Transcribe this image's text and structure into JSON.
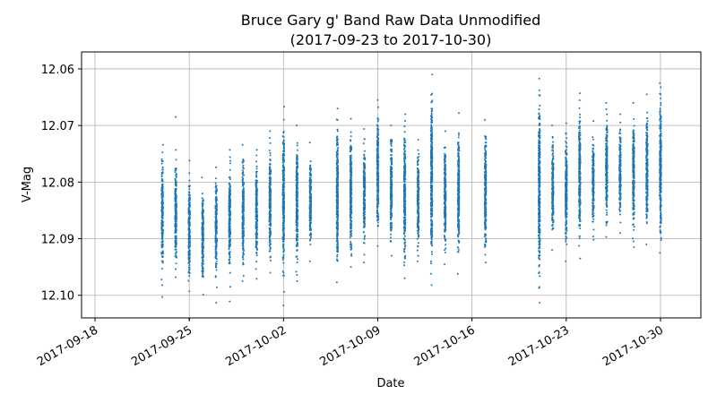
{
  "chart_data": {
    "type": "scatter",
    "title_line1": "Bruce Gary g' Band Raw Data Unmodified",
    "title_line2": "(2017-09-23 to 2017-10-30)",
    "xlabel": "Date",
    "ylabel": "V-Mag",
    "y_inverted": true,
    "ylim": [
      12.104,
      12.057
    ],
    "xlim": [
      "2017-09-17",
      "2017-11-02"
    ],
    "x_ticks": [
      "2017-09-18",
      "2017-09-25",
      "2017-10-02",
      "2017-10-09",
      "2017-10-16",
      "2017-10-23",
      "2017-10-30"
    ],
    "y_ticks": [
      12.06,
      12.07,
      12.08,
      12.09,
      12.1
    ],
    "y_tick_labels": [
      "12.06",
      "12.07",
      "12.08",
      "12.09",
      "12.10"
    ],
    "grid": true,
    "marker_color": "#1f77b4",
    "nights": [
      {
        "date": "2017-09-23",
        "min": 12.0734,
        "max": 12.0982,
        "outliers": [
          12.1003
        ]
      },
      {
        "date": "2017-09-24",
        "min": 12.0743,
        "max": 12.0968,
        "outliers": [
          12.0685
        ]
      },
      {
        "date": "2017-09-25",
        "min": 12.0762,
        "max": 12.0993,
        "outliers": [
          12.1042
        ]
      },
      {
        "date": "2017-09-26",
        "min": 12.0792,
        "max": 12.0999,
        "outliers": []
      },
      {
        "date": "2017-09-27",
        "min": 12.0774,
        "max": 12.0986,
        "outliers": [
          12.1013
        ]
      },
      {
        "date": "2017-09-28",
        "min": 12.0743,
        "max": 12.0985,
        "outliers": [
          12.1011
        ]
      },
      {
        "date": "2017-09-29",
        "min": 12.0734,
        "max": 12.0975,
        "outliers": []
      },
      {
        "date": "2017-09-30",
        "min": 12.0743,
        "max": 12.0971,
        "outliers": []
      },
      {
        "date": "2017-10-01",
        "min": 12.071,
        "max": 12.096,
        "outliers": []
      },
      {
        "date": "2017-10-02",
        "min": 12.0667,
        "max": 12.0994,
        "outliers": [
          12.1018
        ]
      },
      {
        "date": "2017-10-03",
        "min": 12.07,
        "max": 12.0975,
        "outliers": []
      },
      {
        "date": "2017-10-04",
        "min": 12.073,
        "max": 12.094,
        "outliers": []
      },
      {
        "date": "2017-10-06",
        "min": 12.067,
        "max": 12.0977,
        "outliers": []
      },
      {
        "date": "2017-10-07",
        "min": 12.0688,
        "max": 12.095,
        "outliers": []
      },
      {
        "date": "2017-10-08",
        "min": 12.0706,
        "max": 12.0942,
        "outliers": []
      },
      {
        "date": "2017-10-09",
        "min": 12.0655,
        "max": 12.0913,
        "outliers": []
      },
      {
        "date": "2017-10-10",
        "min": 12.07,
        "max": 12.093,
        "outliers": []
      },
      {
        "date": "2017-10-11",
        "min": 12.068,
        "max": 12.097,
        "outliers": []
      },
      {
        "date": "2017-10-12",
        "min": 12.0725,
        "max": 12.094,
        "outliers": []
      },
      {
        "date": "2017-10-13",
        "min": 12.061,
        "max": 12.0982,
        "outliers": []
      },
      {
        "date": "2017-10-14",
        "min": 12.071,
        "max": 12.0945,
        "outliers": []
      },
      {
        "date": "2017-10-15",
        "min": 12.0678,
        "max": 12.0962,
        "outliers": []
      },
      {
        "date": "2017-10-17",
        "min": 12.069,
        "max": 12.0942,
        "outliers": []
      },
      {
        "date": "2017-10-21",
        "min": 12.0617,
        "max": 12.1013,
        "outliers": []
      },
      {
        "date": "2017-10-22",
        "min": 12.07,
        "max": 12.092,
        "outliers": []
      },
      {
        "date": "2017-10-23",
        "min": 12.0696,
        "max": 12.094,
        "outliers": []
      },
      {
        "date": "2017-10-24",
        "min": 12.0643,
        "max": 12.0935,
        "outliers": []
      },
      {
        "date": "2017-10-25",
        "min": 12.0692,
        "max": 12.0902,
        "outliers": []
      },
      {
        "date": "2017-10-26",
        "min": 12.066,
        "max": 12.0897,
        "outliers": []
      },
      {
        "date": "2017-10-27",
        "min": 12.068,
        "max": 12.089,
        "outliers": []
      },
      {
        "date": "2017-10-28",
        "min": 12.066,
        "max": 12.0915,
        "outliers": []
      },
      {
        "date": "2017-10-29",
        "min": 12.0645,
        "max": 12.091,
        "outliers": []
      },
      {
        "date": "2017-10-30",
        "min": 12.0625,
        "max": 12.0925,
        "outliers": []
      }
    ]
  }
}
